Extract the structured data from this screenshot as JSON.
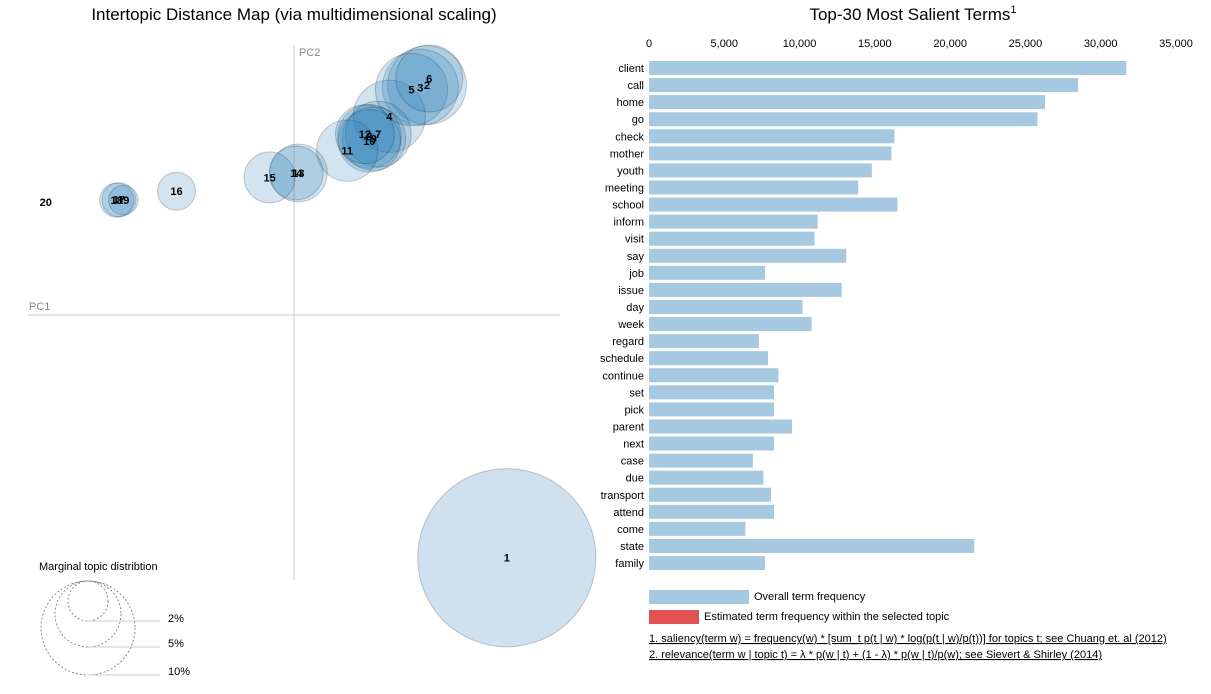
{
  "left_panel": {
    "title": "Intertopic Distance Map (via multidimensional scaling)",
    "pc1_label": "PC1",
    "pc2_label": "PC2",
    "legend_title": "Marginal topic distribtion",
    "legend_levels": [
      "2%",
      "5%",
      "10%"
    ]
  },
  "right_panel": {
    "title": "Top-30 Most Salient Terms",
    "title_superscript": "1",
    "legend_overall": "Overall term frequency",
    "legend_estimated": "Estimated term frequency within the selected topic",
    "footnote1": "1. saliency(term w) = frequency(w) * [sum_t p(t | w) * log(p(t | w)/p(t))] for topics t; see Chuang et. al (2012)",
    "footnote2": "2. relevance(term w | topic t) = λ * p(w | t) + (1 - λ) * p(w | t)/p(w); see Sievert & Shirley (2014)"
  },
  "colors": {
    "bar_overall": "#a6c8e1",
    "bar_estimated": "#e05252",
    "bubble_fill": "#1f77b4",
    "bubble_selected": "#cfe1ef",
    "axis": "#cccccc"
  },
  "chart_data": [
    {
      "type": "scatter",
      "title": "Intertopic Distance Map (via multidimensional scaling)",
      "xlabel": "PC1",
      "ylabel": "PC2",
      "xlim": [
        -0.6,
        0.6
      ],
      "ylim": [
        -0.6,
        0.6
      ],
      "selected_topic": "1",
      "points": [
        {
          "label": "1",
          "x": 0.48,
          "y": -0.55,
          "size": 22.0
        },
        {
          "label": "2",
          "x": 0.3,
          "y": 0.51,
          "size": 4.3
        },
        {
          "label": "3",
          "x": 0.285,
          "y": 0.505,
          "size": 4.0
        },
        {
          "label": "4",
          "x": 0.215,
          "y": 0.44,
          "size": 3.6
        },
        {
          "label": "5",
          "x": 0.265,
          "y": 0.5,
          "size": 3.6
        },
        {
          "label": "6",
          "x": 0.305,
          "y": 0.525,
          "size": 3.1
        },
        {
          "label": "7",
          "x": 0.19,
          "y": 0.4,
          "size": 3.0
        },
        {
          "label": "8",
          "x": 0.17,
          "y": 0.395,
          "size": 2.8
        },
        {
          "label": "9",
          "x": 0.18,
          "y": 0.39,
          "size": 2.8
        },
        {
          "label": "10",
          "x": 0.17,
          "y": 0.385,
          "size": 2.7
        },
        {
          "label": "11",
          "x": 0.12,
          "y": 0.363,
          "size": 2.6
        },
        {
          "label": "12",
          "x": 0.16,
          "y": 0.4,
          "size": 2.4
        },
        {
          "label": "13",
          "x": 0.01,
          "y": 0.313,
          "size": 2.3
        },
        {
          "label": "14",
          "x": 0.005,
          "y": 0.313,
          "size": 2.0
        },
        {
          "label": "15",
          "x": -0.055,
          "y": 0.303,
          "size": 1.8
        },
        {
          "label": "16",
          "x": -0.265,
          "y": 0.272,
          "size": 1.0
        },
        {
          "label": "17",
          "x": -0.395,
          "y": 0.253,
          "size": 0.8
        },
        {
          "label": "18",
          "x": -0.4,
          "y": 0.252,
          "size": 0.8
        },
        {
          "label": "19",
          "x": -0.385,
          "y": 0.252,
          "size": 0.6
        },
        {
          "label": "20",
          "x": -0.56,
          "y": 0.248,
          "size": 0.0
        }
      ]
    },
    {
      "type": "bar",
      "orientation": "horizontal",
      "title": "Top-30 Most Salient Terms",
      "xlim": [
        0,
        35000
      ],
      "xticks": [
        "0",
        "5,000",
        "10,000",
        "15,000",
        "20,000",
        "25,000",
        "30,000",
        "35,000"
      ],
      "categories": [
        "client",
        "call",
        "home",
        "go",
        "check",
        "mother",
        "youth",
        "meeting",
        "school",
        "inform",
        "visit",
        "say",
        "job",
        "issue",
        "day",
        "week",
        "regard",
        "schedule",
        "continue",
        "set",
        "pick",
        "parent",
        "next",
        "case",
        "due",
        "transport",
        "attend",
        "come",
        "state",
        "family"
      ],
      "series": [
        {
          "name": "Overall term frequency",
          "values": [
            31700,
            28500,
            26300,
            25800,
            16300,
            16100,
            14800,
            13900,
            16500,
            11200,
            11000,
            13100,
            7700,
            12800,
            10200,
            10800,
            7300,
            7900,
            8600,
            8300,
            8300,
            9500,
            8300,
            6900,
            7600,
            8100,
            8300,
            6400,
            21600,
            7700
          ]
        }
      ]
    }
  ]
}
